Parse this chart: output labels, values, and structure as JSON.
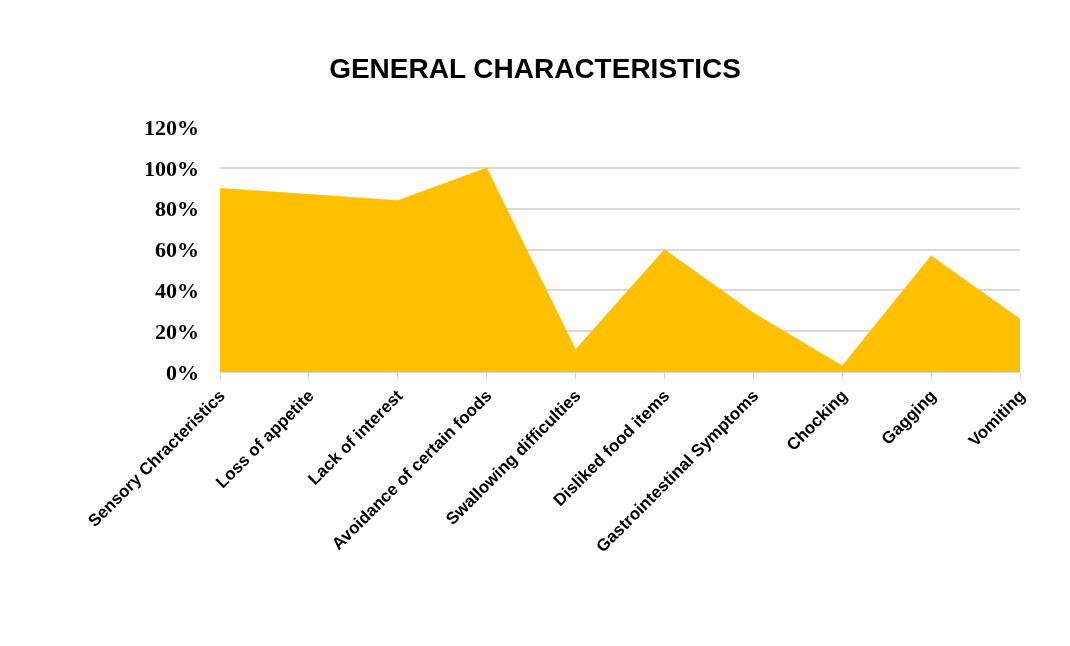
{
  "chart_data": {
    "type": "area",
    "title": "GENERAL CHARACTERISTICS",
    "categories": [
      "Sensory Chracteristics",
      "Loss of appetite",
      "Lack of interest",
      "Avoidance of certain foods",
      "Swallowing difficulties",
      "Disliked food items",
      "Gastrointestinal Symptoms",
      "Chocking",
      "Gagging",
      "Vomiting"
    ],
    "series": [
      {
        "color": "#ffc000",
        "values": [
          90,
          87,
          84,
          100,
          11,
          60,
          29,
          3,
          57,
          26
        ]
      }
    ],
    "ylim": [
      0,
      120
    ],
    "yticks": [
      {
        "value": 0,
        "label": "0%"
      },
      {
        "value": 20,
        "label": "20%"
      },
      {
        "value": 40,
        "label": "40%"
      },
      {
        "value": 60,
        "label": "60%"
      },
      {
        "value": 80,
        "label": "80%"
      },
      {
        "value": 100,
        "label": "100%"
      },
      {
        "value": 120,
        "label": "120%"
      }
    ],
    "grid": "y"
  }
}
